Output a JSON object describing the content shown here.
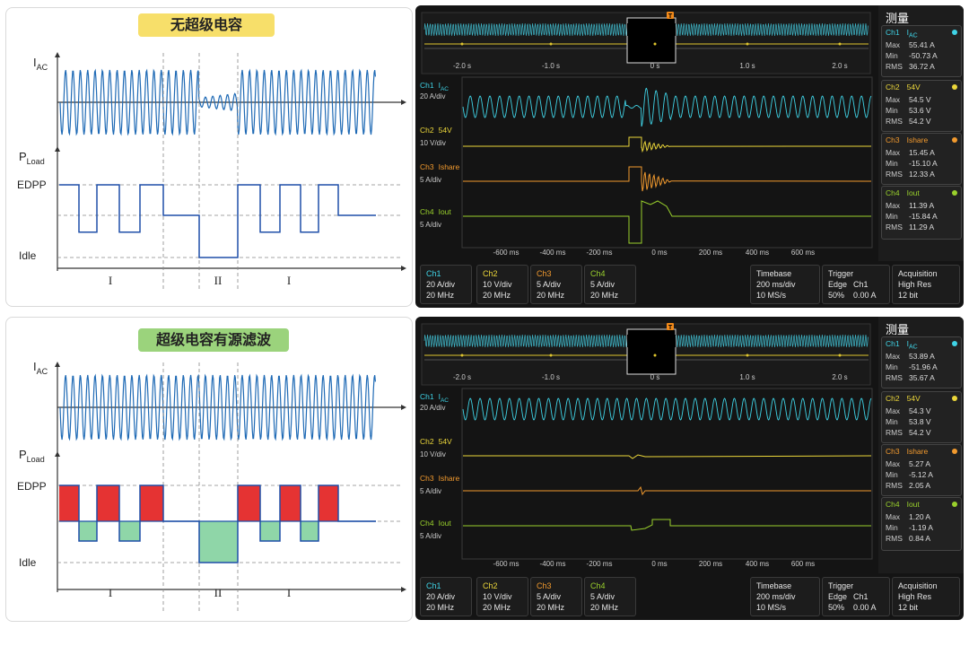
{
  "panels": [
    {
      "title": "无超级电容",
      "badge_color": "#f7df6a",
      "sub_ac": "AC",
      "sub_load": "Load",
      "edpp": "EDPP",
      "idle": "Idle",
      "roman": [
        "I",
        "II",
        "I"
      ],
      "mode": "normal"
    },
    {
      "title": "超级电容有源滤波",
      "badge_color": "#9bd37c",
      "sub_ac": "AC",
      "sub_load": "Load",
      "edpp": "EDPP",
      "idle": "Idle",
      "roman": [
        "I",
        "II",
        "I"
      ],
      "mode": "filter"
    }
  ],
  "labels": {
    "i": "I",
    "p": "P"
  },
  "scopes": [
    {
      "overview_ticks": [
        "-2.0 s",
        "-1.0 s",
        "0 s",
        "1.0 s",
        "2.0 s"
      ],
      "time_ticks": [
        "-600 ms",
        "-400 ms",
        "-200 ms",
        "0 ms",
        "200 ms",
        "400 ms",
        "600 ms"
      ],
      "trigger_glyph": "T",
      "channels": [
        {
          "name": "Ch1",
          "signal": "I",
          "sub": "AC",
          "scale": "20 A/div",
          "color": "#3fd3e6"
        },
        {
          "name": "Ch2",
          "signal": "54V",
          "sub": "",
          "scale": "10 V/div",
          "color": "#ecd73a"
        },
        {
          "name": "Ch3",
          "signal": "Ishare",
          "sub": "",
          "scale": "5 A/div",
          "color": "#f29a2e"
        },
        {
          "name": "Ch4",
          "signal": "Iout",
          "sub": "",
          "scale": "5 A/div",
          "color": "#9ad12c"
        }
      ],
      "bottom": [
        {
          "t": "Ch1",
          "a": "20 A/div",
          "b": "20 MHz"
        },
        {
          "t": "Ch2",
          "a": "10 V/div",
          "b": "20 MHz"
        },
        {
          "t": "Ch3",
          "a": "5 A/div",
          "b": "20 MHz"
        },
        {
          "t": "Ch4",
          "a": "5 A/div",
          "b": "20 MHz"
        }
      ],
      "timebase": {
        "t": "Timebase",
        "a": "200 ms/div",
        "b": "10 MS/s"
      },
      "trigger": {
        "t": "Trigger",
        "a1": "Edge",
        "a2": "Ch1",
        "b1": "50%",
        "b2": "0.00 A"
      },
      "acq": {
        "t": "Acquisition",
        "a": "High Res",
        "b": "12 bit"
      },
      "meas_title": "测量",
      "meas": [
        {
          "max": "55.41 A",
          "min": "-50.73 A",
          "rms": "36.72 A"
        },
        {
          "max": "54.5 V",
          "min": "53.6 V",
          "rms": "54.2 V"
        },
        {
          "max": "15.45 A",
          "min": "-15.10 A",
          "rms": "12.33 A"
        },
        {
          "max": "11.39 A",
          "min": "-15.84 A",
          "rms": "11.29 A"
        }
      ],
      "mode": "normal"
    },
    {
      "overview_ticks": [
        "-2.0 s",
        "-1.0 s",
        "0 s",
        "1.0 s",
        "2.0 s"
      ],
      "time_ticks": [
        "-600 ms",
        "-400 ms",
        "-200 ms",
        "0 ms",
        "200 ms",
        "400 ms",
        "600 ms"
      ],
      "trigger_glyph": "T",
      "channels": [
        {
          "name": "Ch1",
          "signal": "I",
          "sub": "AC",
          "scale": "20 A/div",
          "color": "#3fd3e6"
        },
        {
          "name": "Ch2",
          "signal": "54V",
          "sub": "",
          "scale": "10 V/div",
          "color": "#ecd73a"
        },
        {
          "name": "Ch3",
          "signal": "Ishare",
          "sub": "",
          "scale": "5 A/div",
          "color": "#f29a2e"
        },
        {
          "name": "Ch4",
          "signal": "Iout",
          "sub": "",
          "scale": "5 A/div",
          "color": "#9ad12c"
        }
      ],
      "bottom": [
        {
          "t": "Ch1",
          "a": "20 A/div",
          "b": "20 MHz"
        },
        {
          "t": "Ch2",
          "a": "10 V/div",
          "b": "20 MHz"
        },
        {
          "t": "Ch3",
          "a": "5 A/div",
          "b": "20 MHz"
        },
        {
          "t": "Ch4",
          "a": "5 A/div",
          "b": "20 MHz"
        }
      ],
      "timebase": {
        "t": "Timebase",
        "a": "200 ms/div",
        "b": "10 MS/s"
      },
      "trigger": {
        "t": "Trigger",
        "a1": "Edge",
        "a2": "Ch1",
        "b1": "50%",
        "b2": "0.00 A"
      },
      "acq": {
        "t": "Acquisition",
        "a": "High Res",
        "b": "12 bit"
      },
      "meas_title": "测量",
      "meas": [
        {
          "max": "53.89 A",
          "min": "-51.96 A",
          "rms": "35.67 A"
        },
        {
          "max": "54.3 V",
          "min": "53.8 V",
          "rms": "54.2 V"
        },
        {
          "max": "5.27 A",
          "min": "-5.12 A",
          "rms": "2.05 A"
        },
        {
          "max": "1.20 A",
          "min": "-1.19 A",
          "rms": "0.84 A"
        }
      ],
      "mode": "filter"
    }
  ],
  "meas_row_labels": [
    "Max",
    "Min",
    "RMS"
  ]
}
